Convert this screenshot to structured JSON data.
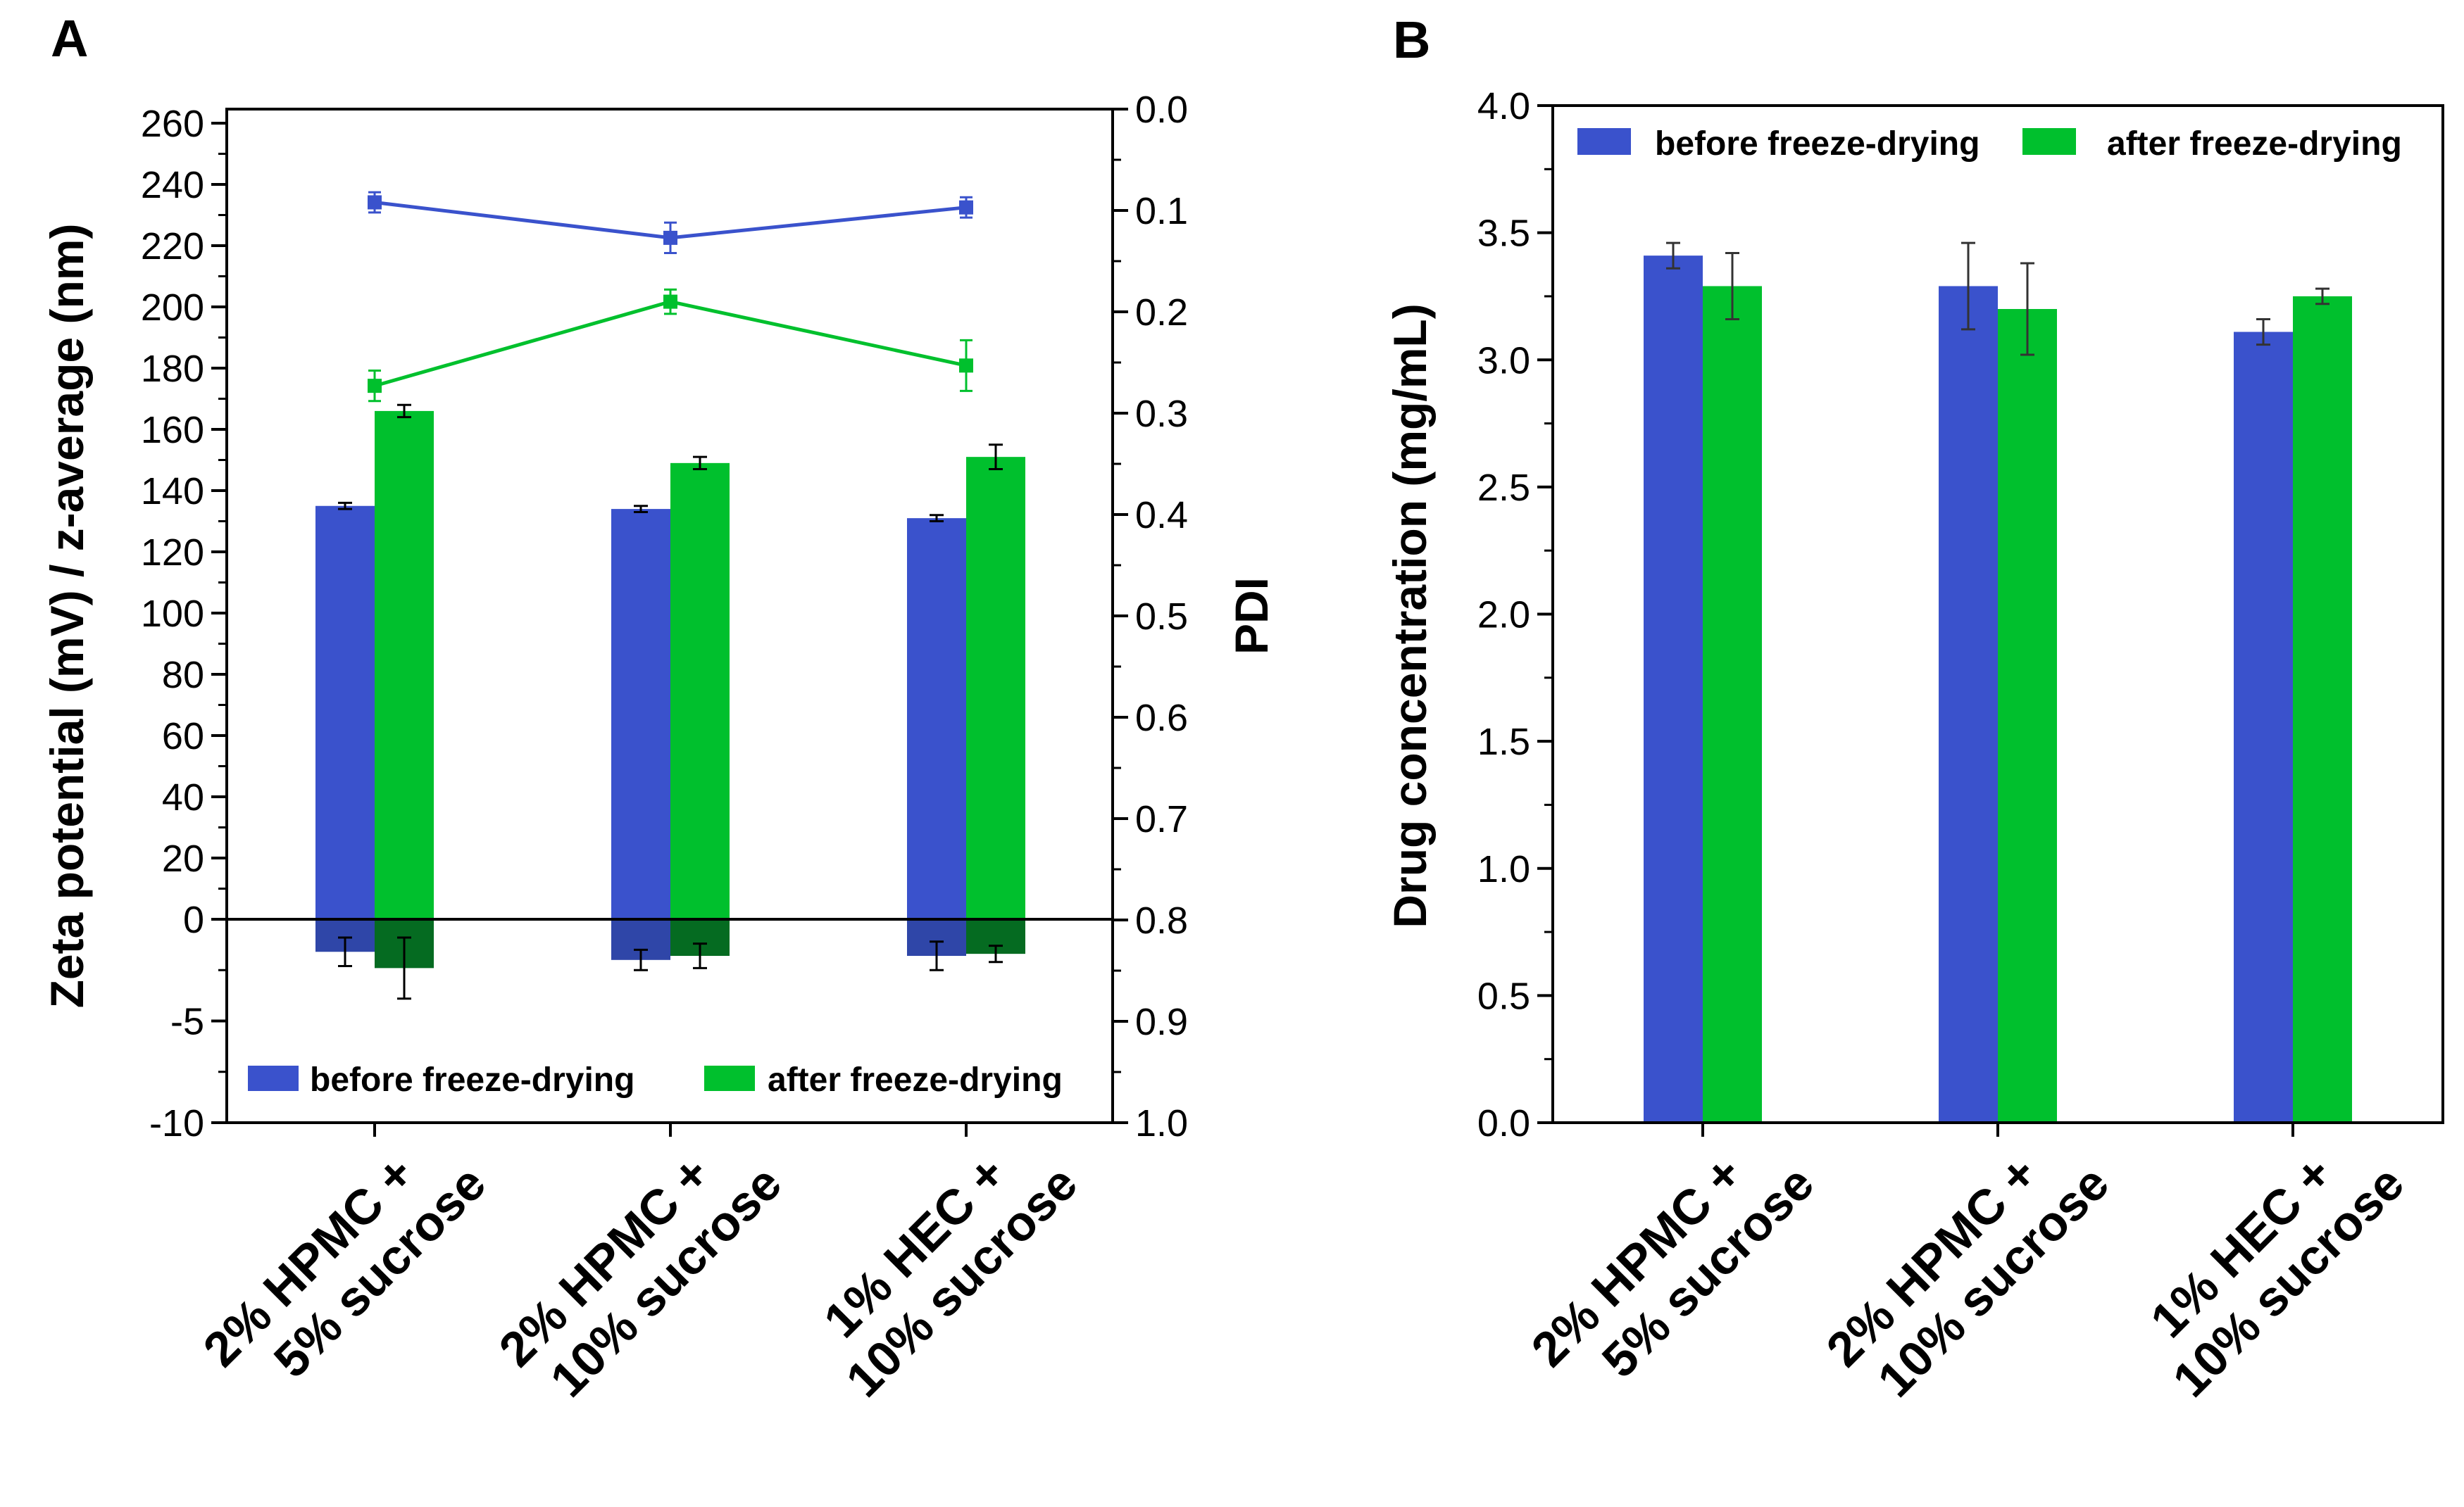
{
  "chart_data": [
    {
      "panel": "A",
      "type": "bar",
      "title": "",
      "xlabel": "",
      "ylabel": "Zeta potential (mV) / z-average (nm)",
      "y2label": "PDI",
      "categories": [
        {
          "line1": "2% HPMC +",
          "line2": "5% sucrose"
        },
        {
          "line1": "2% HPMC +",
          "line2": "10% sucrose"
        },
        {
          "line1": "1% HEC +",
          "line2": "10% sucrose"
        }
      ],
      "y_ticks": [
        "260",
        "240",
        "220",
        "200",
        "180",
        "160",
        "140",
        "120",
        "100",
        "80",
        "60",
        "40",
        "20",
        "0",
        "-5",
        "-10"
      ],
      "y2_ticks": [
        "0.0",
        "0.1",
        "0.2",
        "0.3",
        "0.4",
        "0.5",
        "0.6",
        "0.7",
        "0.8",
        "0.9",
        "1.0"
      ],
      "y2lim": [
        0.0,
        1.0
      ],
      "z_average": {
        "series": [
          {
            "name": "before freeze-drying",
            "color": "#3A52CC",
            "values": [
              135,
              134,
              131
            ],
            "errors": [
              1,
              1,
              1
            ]
          },
          {
            "name": "after freeze-drying",
            "color": "#00C02D",
            "values": [
              166,
              149,
              151
            ],
            "errors": [
              2,
              2,
              4
            ]
          }
        ]
      },
      "zeta_potential": {
        "series": [
          {
            "name": "before freeze-drying",
            "color": "#2F46A8",
            "values": [
              -1.6,
              -2.0,
              -1.8
            ],
            "errors": [
              0.7,
              0.5,
              0.7
            ]
          },
          {
            "name": "after freeze-drying",
            "color": "#056B21",
            "values": [
              -2.4,
              -1.8,
              -1.7
            ],
            "errors": [
              1.5,
              0.6,
              0.4
            ]
          }
        ]
      },
      "pdi": {
        "series": [
          {
            "name": "before freeze-drying",
            "color": "#3A52CC",
            "values": [
              0.092,
              0.127,
              0.097
            ],
            "errors": [
              0.01,
              0.015,
              0.01
            ]
          },
          {
            "name": "after freeze-drying",
            "color": "#00C02D",
            "values": [
              0.273,
              0.19,
              0.253
            ],
            "errors": [
              0.015,
              0.012,
              0.025
            ]
          }
        ]
      },
      "legend": [
        {
          "label": "before freeze-drying",
          "color": "#3A52CC"
        },
        {
          "label": "after freeze-drying",
          "color": "#00C02D"
        }
      ]
    },
    {
      "panel": "B",
      "type": "bar",
      "title": "",
      "xlabel": "",
      "ylabel": "Drug concentration (mg/mL)",
      "ylim": [
        0.0,
        4.0
      ],
      "y_ticks": [
        "0.0",
        "0.5",
        "1.0",
        "1.5",
        "2.0",
        "2.5",
        "3.0",
        "3.5",
        "4.0"
      ],
      "categories": [
        {
          "line1": "2% HPMC +",
          "line2": "5% sucrose"
        },
        {
          "line1": "2% HPMC +",
          "line2": "10% sucrose"
        },
        {
          "line1": "1% HEC +",
          "line2": "10% sucrose"
        }
      ],
      "series": [
        {
          "name": "before freeze-drying",
          "color": "#3A52CC",
          "values": [
            3.41,
            3.29,
            3.11
          ],
          "errors": [
            0.05,
            0.17,
            0.05
          ]
        },
        {
          "name": "after freeze-drying",
          "color": "#00C02D",
          "values": [
            3.29,
            3.2,
            3.25
          ],
          "errors": [
            0.13,
            0.18,
            0.03
          ]
        }
      ],
      "legend": [
        {
          "label": "before freeze-drying",
          "color": "#3A52CC"
        },
        {
          "label": "after freeze-drying",
          "color": "#00C02D"
        }
      ]
    }
  ]
}
